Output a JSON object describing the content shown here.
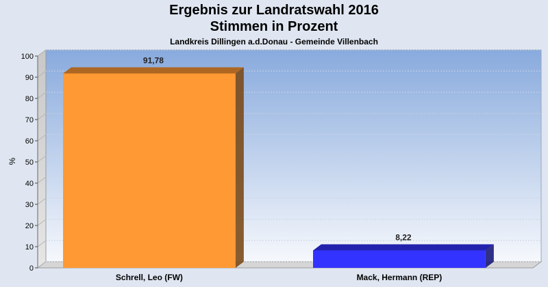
{
  "colors": {
    "background": "#dfe6f1",
    "series": [
      "#ff9933",
      "#3333ff"
    ]
  },
  "chart_data": {
    "type": "bar",
    "title": "Ergebnis zur Landratswahl 2016",
    "subtitle": "Stimmen in Prozent",
    "subsubtitle": "Landkreis Dillingen a.d.Donau - Gemeinde Villenbach",
    "ylabel": "%",
    "xlabel": "",
    "categories": [
      "Schrell, Leo (FW)",
      "Mack, Hermann (REP)"
    ],
    "values": [
      91.78,
      8.22
    ],
    "value_labels": [
      "91,78",
      "8,22"
    ],
    "ylim": [
      0,
      100
    ],
    "yticks": [
      0,
      10,
      20,
      30,
      40,
      50,
      60,
      70,
      80,
      90,
      100
    ],
    "grid": true,
    "legend": "none"
  }
}
